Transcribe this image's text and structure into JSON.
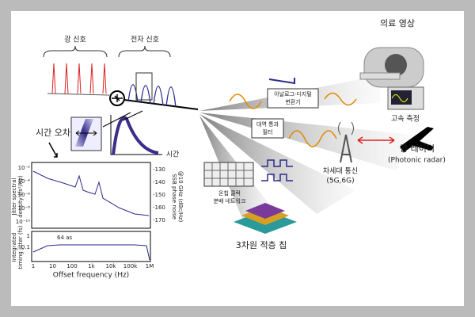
{
  "signals": {
    "optical": "광 신호",
    "electronic": "전자 신호",
    "timing_error": "시간 오차",
    "time_axis": "시간"
  },
  "plot": {
    "left_axis_label": [
      "Jitter spectral",
      "density (fs²/Hz)"
    ],
    "right_axis_label": [
      "SSB phase noise",
      "@10 GHz (dBc/Hz)"
    ],
    "lower_axis_label": [
      "Integrated",
      "timing jitter (fs)"
    ],
    "x_label": "Offset frequency (Hz)",
    "left_ticks": [
      "10⁻²",
      "10⁻⁴",
      "10⁻⁶",
      "10⁻⁸",
      "10⁻¹⁰"
    ],
    "right_ticks": [
      "-130",
      "-140",
      "-150",
      "-160",
      "-170"
    ],
    "lower_ticks": [
      "1",
      "0.1"
    ],
    "x_ticks": [
      "1",
      "10",
      "100",
      "1k",
      "10k",
      "100k",
      "1M"
    ],
    "annotation": "64 as"
  },
  "applications": {
    "medical": "의료 영상",
    "adc": [
      "아날로그-디지털",
      "변환기"
    ],
    "measurement": "고속 측정",
    "filter": [
      "대역 통과",
      "필터"
    ],
    "radar": "광 레이더",
    "radar_en": "(Photonic radar)",
    "comm": "차세대 통신",
    "comm_en": "(5G,6G)",
    "clock": [
      "온칩 클럭",
      "분배 네트워크"
    ],
    "chip": "3차원 적층 칩"
  }
}
